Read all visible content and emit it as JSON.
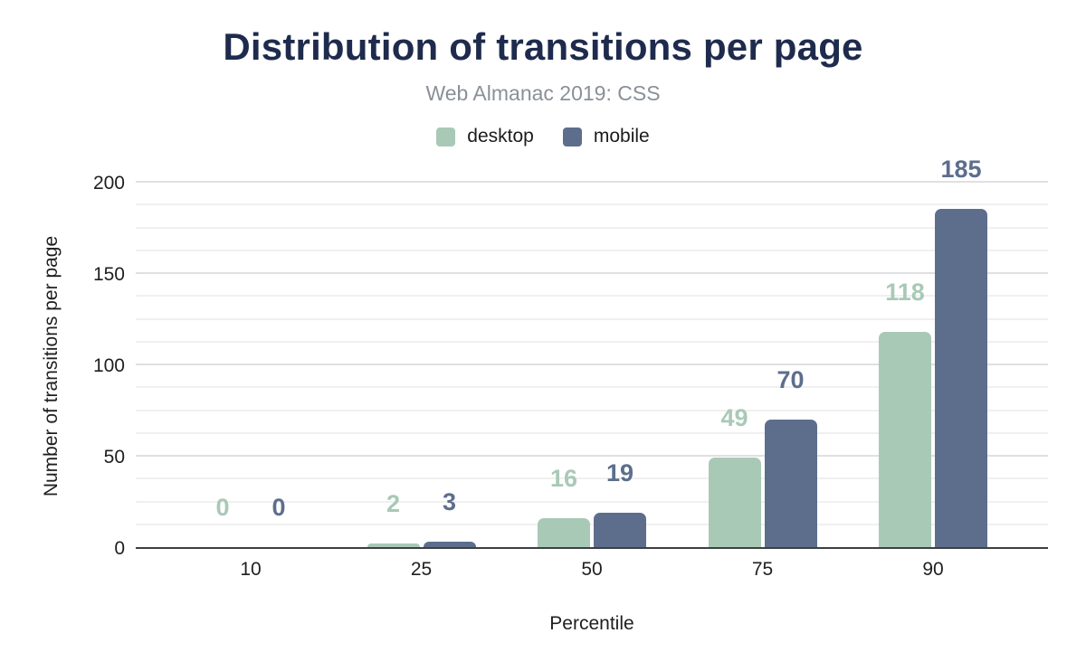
{
  "header": {
    "title": "Distribution of transitions per page",
    "subtitle": "Web Almanac 2019: CSS"
  },
  "legend": {
    "items": [
      {
        "label": "desktop",
        "color": "#a9c9b7"
      },
      {
        "label": "mobile",
        "color": "#5d6e8d"
      }
    ]
  },
  "axes": {
    "y_title": "Number of transitions per page",
    "x_title": "Percentile",
    "y_tick_labels": [
      "0",
      "50",
      "100",
      "150",
      "200"
    ],
    "x_tick_labels": [
      "10",
      "25",
      "50",
      "75",
      "90"
    ]
  },
  "colors": {
    "title": "#1e2b4d",
    "subtitle": "#8a9097",
    "axis_text": "#1f1f1f",
    "baseline": "#3c4043",
    "gridline_minor": "#f0f0f0",
    "gridline_major": "#e0e0e0",
    "desktop": "#a9c9b7",
    "mobile": "#5d6e8d"
  },
  "chart_data": {
    "type": "bar",
    "title": "Distribution of transitions per page",
    "subtitle": "Web Almanac 2019: CSS",
    "categories": [
      "10",
      "25",
      "50",
      "75",
      "90"
    ],
    "series": [
      {
        "name": "desktop",
        "color": "#a9c9b7",
        "values": [
          0,
          2,
          16,
          49,
          118
        ]
      },
      {
        "name": "mobile",
        "color": "#5d6e8d",
        "values": [
          0,
          3,
          19,
          70,
          185
        ]
      }
    ],
    "xlabel": "Percentile",
    "ylabel": "Number of transitions per page",
    "ylim": [
      0,
      200
    ],
    "yticks": [
      0,
      50,
      100,
      150,
      200
    ],
    "minor_grid_step": 12.5,
    "grid": true,
    "legend_position": "top",
    "bar_value_labels": true
  }
}
